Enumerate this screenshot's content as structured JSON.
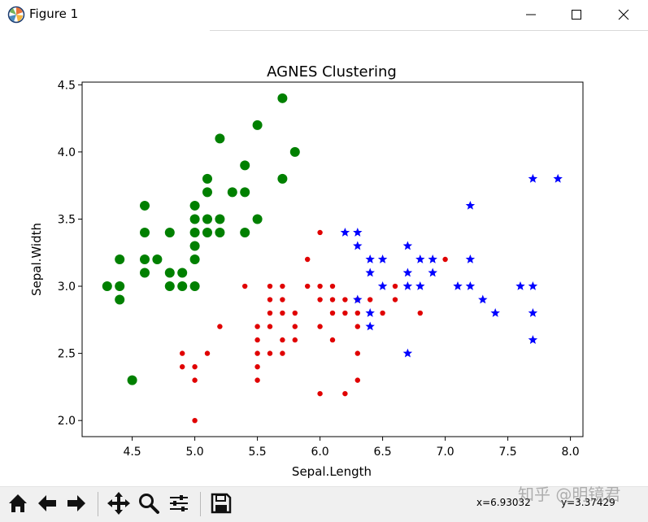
{
  "window": {
    "title": "Figure 1",
    "icons": {
      "app": "figure-app-icon",
      "minimize": "minimize-icon",
      "maximize": "maximize-icon",
      "close": "close-icon"
    }
  },
  "toolbar": {
    "buttons": [
      "home-icon",
      "back-arrow-icon",
      "forward-arrow-icon",
      "pan-move-icon",
      "zoom-magnifier-icon",
      "configure-subplots-icon",
      "save-floppy-icon"
    ],
    "x_readout": "x=6.93032",
    "y_readout": "y=3.37429"
  },
  "watermark": "知乎 @明镜君",
  "chart_data": {
    "type": "scatter",
    "title": "AGNES Clustering",
    "xlabel": "Sepal.Length",
    "ylabel": "Sepal.Width",
    "xlim": [
      4.1,
      8.1
    ],
    "ylim": [
      1.88,
      4.52
    ],
    "xticks": [
      4.5,
      5.0,
      5.5,
      6.0,
      6.5,
      7.0,
      7.5,
      8.0
    ],
    "xtick_labels": [
      "4.5",
      "5.0",
      "5.5",
      "6.0",
      "6.5",
      "7.0",
      "7.5",
      "8.0"
    ],
    "yticks": [
      2.0,
      2.5,
      3.0,
      3.5,
      4.0,
      4.5
    ],
    "ytick_labels": [
      "2.0",
      "2.5",
      "3.0",
      "3.5",
      "4.0",
      "4.5"
    ],
    "grid": false,
    "series": [
      {
        "marker": "large-circle",
        "color": "#008000",
        "points": [
          [
            5.7,
            4.4
          ],
          [
            5.5,
            4.2
          ],
          [
            5.2,
            4.1
          ],
          [
            5.8,
            4.0
          ],
          [
            5.4,
            3.9
          ],
          [
            5.1,
            3.8
          ],
          [
            5.7,
            3.8
          ],
          [
            5.1,
            3.7
          ],
          [
            5.3,
            3.7
          ],
          [
            5.4,
            3.7
          ],
          [
            4.6,
            3.6
          ],
          [
            5.0,
            3.6
          ],
          [
            5.0,
            3.5
          ],
          [
            5.1,
            3.5
          ],
          [
            5.2,
            3.5
          ],
          [
            5.5,
            3.5
          ],
          [
            4.6,
            3.4
          ],
          [
            4.8,
            3.4
          ],
          [
            5.0,
            3.4
          ],
          [
            5.1,
            3.4
          ],
          [
            5.2,
            3.4
          ],
          [
            5.4,
            3.4
          ],
          [
            5.0,
            3.3
          ],
          [
            4.4,
            3.2
          ],
          [
            4.6,
            3.2
          ],
          [
            4.7,
            3.2
          ],
          [
            5.0,
            3.2
          ],
          [
            4.6,
            3.1
          ],
          [
            4.8,
            3.1
          ],
          [
            4.9,
            3.1
          ],
          [
            4.3,
            3.0
          ],
          [
            4.4,
            3.0
          ],
          [
            4.8,
            3.0
          ],
          [
            4.9,
            3.0
          ],
          [
            5.0,
            3.0
          ],
          [
            4.4,
            2.9
          ],
          [
            4.5,
            2.3
          ]
        ]
      },
      {
        "marker": "small-dot",
        "color": "#e00000",
        "points": [
          [
            6.0,
            3.4
          ],
          [
            5.9,
            3.2
          ],
          [
            5.4,
            3.0
          ],
          [
            5.6,
            3.0
          ],
          [
            5.7,
            3.0
          ],
          [
            5.9,
            3.0
          ],
          [
            6.0,
            3.0
          ],
          [
            6.1,
            3.0
          ],
          [
            6.6,
            3.0
          ],
          [
            5.6,
            2.9
          ],
          [
            5.7,
            2.9
          ],
          [
            6.0,
            2.9
          ],
          [
            6.1,
            2.9
          ],
          [
            6.2,
            2.9
          ],
          [
            6.3,
            2.9
          ],
          [
            6.4,
            2.9
          ],
          [
            6.6,
            2.9
          ],
          [
            5.6,
            2.8
          ],
          [
            5.7,
            2.8
          ],
          [
            5.8,
            2.8
          ],
          [
            6.1,
            2.8
          ],
          [
            6.2,
            2.8
          ],
          [
            6.3,
            2.8
          ],
          [
            6.5,
            2.8
          ],
          [
            6.8,
            2.8
          ],
          [
            5.5,
            2.7
          ],
          [
            5.2,
            2.7
          ],
          [
            5.6,
            2.7
          ],
          [
            5.8,
            2.7
          ],
          [
            6.0,
            2.7
          ],
          [
            6.3,
            2.7
          ],
          [
            5.5,
            2.6
          ],
          [
            5.7,
            2.6
          ],
          [
            5.8,
            2.6
          ],
          [
            6.1,
            2.6
          ],
          [
            4.9,
            2.5
          ],
          [
            5.1,
            2.5
          ],
          [
            5.5,
            2.5
          ],
          [
            5.6,
            2.5
          ],
          [
            5.7,
            2.5
          ],
          [
            6.3,
            2.5
          ],
          [
            4.9,
            2.4
          ],
          [
            5.0,
            2.4
          ],
          [
            5.5,
            2.4
          ],
          [
            5.0,
            2.3
          ],
          [
            5.5,
            2.3
          ],
          [
            6.3,
            2.3
          ],
          [
            6.0,
            2.2
          ],
          [
            6.2,
            2.2
          ],
          [
            5.0,
            2.0
          ],
          [
            7.0,
            3.2
          ]
        ]
      },
      {
        "marker": "star",
        "color": "#0000ff",
        "points": [
          [
            7.7,
            3.8
          ],
          [
            7.9,
            3.8
          ],
          [
            7.2,
            3.6
          ],
          [
            6.2,
            3.4
          ],
          [
            6.3,
            3.4
          ],
          [
            6.3,
            3.3
          ],
          [
            6.7,
            3.3
          ],
          [
            6.4,
            3.2
          ],
          [
            6.5,
            3.2
          ],
          [
            6.8,
            3.2
          ],
          [
            6.9,
            3.2
          ],
          [
            7.2,
            3.2
          ],
          [
            6.4,
            3.1
          ],
          [
            6.7,
            3.1
          ],
          [
            6.9,
            3.1
          ],
          [
            6.5,
            3.0
          ],
          [
            6.7,
            3.0
          ],
          [
            6.8,
            3.0
          ],
          [
            7.1,
            3.0
          ],
          [
            7.2,
            3.0
          ],
          [
            7.6,
            3.0
          ],
          [
            7.7,
            3.0
          ],
          [
            6.3,
            2.9
          ],
          [
            7.3,
            2.9
          ],
          [
            6.4,
            2.8
          ],
          [
            7.4,
            2.8
          ],
          [
            7.7,
            2.8
          ],
          [
            6.4,
            2.7
          ],
          [
            7.7,
            2.6
          ],
          [
            6.7,
            2.5
          ]
        ]
      }
    ]
  }
}
